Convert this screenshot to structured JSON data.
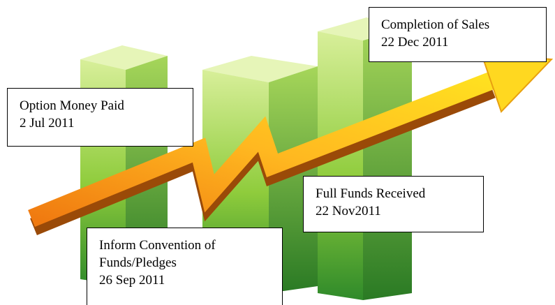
{
  "milestones": [
    {
      "lines": [
        "Completion of Sales",
        "22 Dec 2011"
      ]
    },
    {
      "lines": [
        "Option Money Paid",
        "2 Jul 2011"
      ]
    },
    {
      "lines": [
        "Full Funds Received",
        "22 Nov2011"
      ]
    },
    {
      "lines": [
        "Inform Convention of",
        "Funds/Pledges",
        "26 Sep 2011"
      ]
    }
  ]
}
